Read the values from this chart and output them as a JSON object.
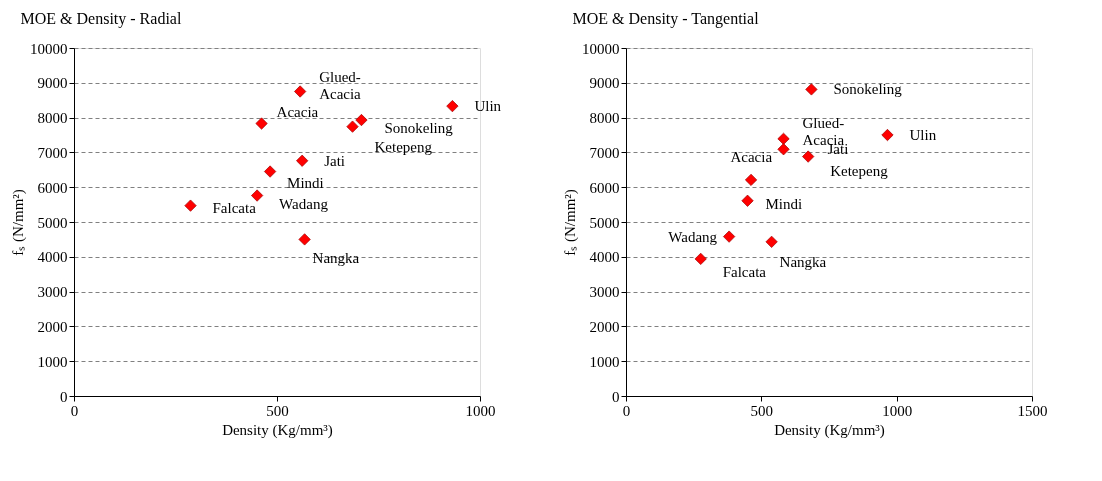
{
  "chart_data": [
    {
      "type": "scatter",
      "title": "MOE & Density - Radial",
      "xlabel": "Density (Kg/mm³)",
      "ylabel": "fₛ (N/mm²)",
      "x": [
        557,
        462,
        708,
        686,
        932,
        562,
        483,
        451,
        287,
        568
      ],
      "series": [
        {
          "color": "#ff0000",
          "values": [
            8750,
            7830,
            7930,
            7740,
            8330,
            6760,
            6450,
            5760,
            5470,
            4500
          ]
        }
      ],
      "xlim": [
        0,
        1000
      ],
      "xticks": [
        0,
        500,
        1000
      ],
      "ylim": [
        0,
        10000
      ],
      "yticks": [
        0,
        1000,
        2000,
        3000,
        4000,
        5000,
        6000,
        7000,
        8000,
        9000,
        10000
      ],
      "grid": "y",
      "marker": "diamond",
      "annotations": [
        {
          "text": "Glued-Acacia",
          "x": 557,
          "y": 8750
        },
        {
          "text": "Acacia",
          "x": 462,
          "y": 7830
        },
        {
          "text": "Sonokeling",
          "x": 708,
          "y": 7930
        },
        {
          "text": "Ketepeng",
          "x": 686,
          "y": 7740
        },
        {
          "text": "Ulin",
          "x": 932,
          "y": 8330
        },
        {
          "text": "Jati",
          "x": 562,
          "y": 6760
        },
        {
          "text": "Mindi",
          "x": 483,
          "y": 6450
        },
        {
          "text": "Wadang",
          "x": 451,
          "y": 5760
        },
        {
          "text": "Falcata",
          "x": 287,
          "y": 5470
        },
        {
          "text": "Nangka",
          "x": 568,
          "y": 4500
        }
      ]
    },
    {
      "type": "scatter",
      "title": "MOE & Density - Tangential",
      "xlabel": "Density (Kg/mm³)",
      "ylabel": "fₛ (N/mm²)",
      "x": [
        582,
        462,
        685,
        673,
        966,
        582,
        449,
        381,
        276,
        538
      ],
      "series": [
        {
          "color": "#ff0000",
          "values": [
            7390,
            6210,
            8810,
            6880,
            7500,
            7090,
            5610,
            4580,
            3940,
            4430
          ]
        }
      ],
      "xlim": [
        0,
        1500
      ],
      "xticks": [
        0,
        500,
        1000,
        1500
      ],
      "ylim": [
        0,
        10000
      ],
      "yticks": [
        0,
        1000,
        2000,
        3000,
        4000,
        5000,
        6000,
        7000,
        8000,
        9000,
        10000
      ],
      "grid": "y",
      "marker": "diamond",
      "annotations": [
        {
          "text": "Glued-Acacia",
          "x": 582,
          "y": 7390
        },
        {
          "text": "Acacia",
          "x": 462,
          "y": 6210
        },
        {
          "text": "Sonokeling",
          "x": 685,
          "y": 8810
        },
        {
          "text": "Ketepeng",
          "x": 673,
          "y": 6880
        },
        {
          "text": "Ulin",
          "x": 966,
          "y": 7500
        },
        {
          "text": "Jati",
          "x": 582,
          "y": 7090
        },
        {
          "text": "Mindi",
          "x": 449,
          "y": 5610
        },
        {
          "text": "Wadang",
          "x": 381,
          "y": 4580
        },
        {
          "text": "Falcata",
          "x": 276,
          "y": 3940
        },
        {
          "text": "Nangka",
          "x": 538,
          "y": 4430
        }
      ]
    }
  ]
}
